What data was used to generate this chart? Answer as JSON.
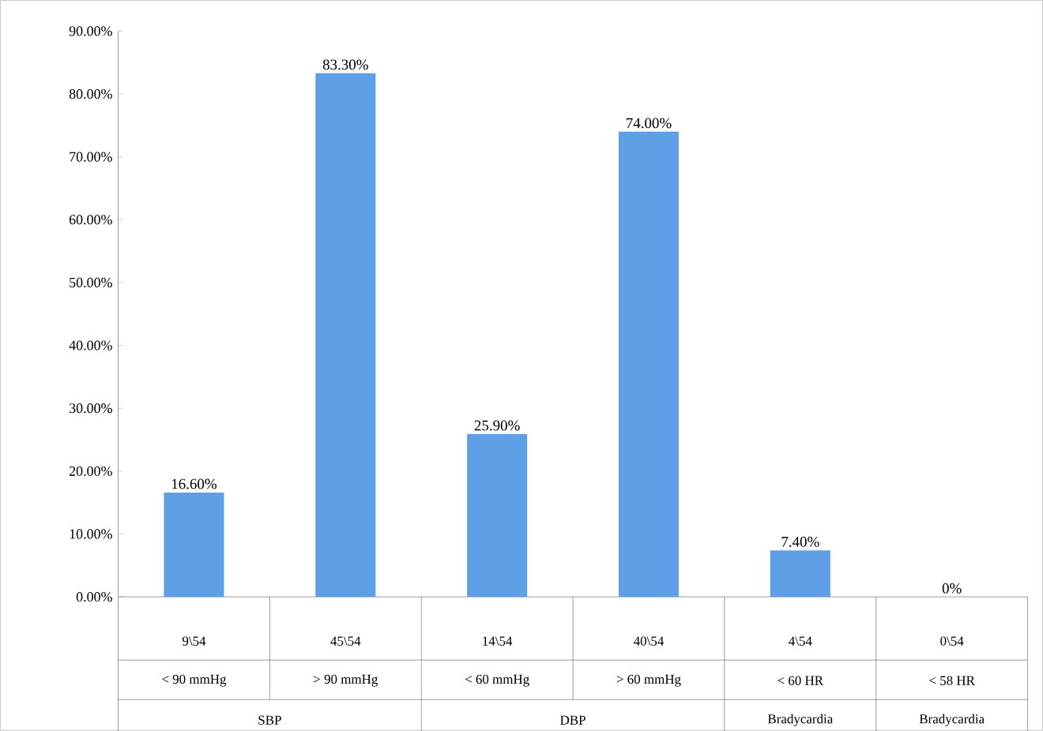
{
  "chart_data": {
    "type": "bar",
    "categories": [
      "9\\54",
      "45\\54",
      "14\\54",
      "40\\54",
      "4\\54",
      "0\\54"
    ],
    "values": [
      16.6,
      83.3,
      25.9,
      74.0,
      7.4,
      0
    ],
    "value_labels": [
      "16.60%",
      "83.30%",
      "25.90%",
      "74.00%",
      "7.40%",
      "0%"
    ],
    "color": "#5f9fe6",
    "ylim": [
      0,
      90
    ],
    "yticks": [
      {
        "value": 0,
        "label": "0.00%"
      },
      {
        "value": 10,
        "label": "10.00%"
      },
      {
        "value": 20,
        "label": "20.00%"
      },
      {
        "value": 30,
        "label": "30.00%"
      },
      {
        "value": 40,
        "label": "40.00%"
      },
      {
        "value": 50,
        "label": "50.00%"
      },
      {
        "value": 60,
        "label": "60.00%"
      },
      {
        "value": 70,
        "label": "70.00%"
      },
      {
        "value": 80,
        "label": "80.00%"
      },
      {
        "value": 90,
        "label": "90.00%"
      }
    ],
    "grid": false,
    "annotations": [
      "< 90 mmHg",
      "> 90 mmHg",
      "< 60 mmHg",
      "> 60 mmHg",
      "< 60 HR",
      "< 58 HR",
      "SBP",
      "DBP",
      "Bradycardia",
      "Bradycardia"
    ]
  }
}
